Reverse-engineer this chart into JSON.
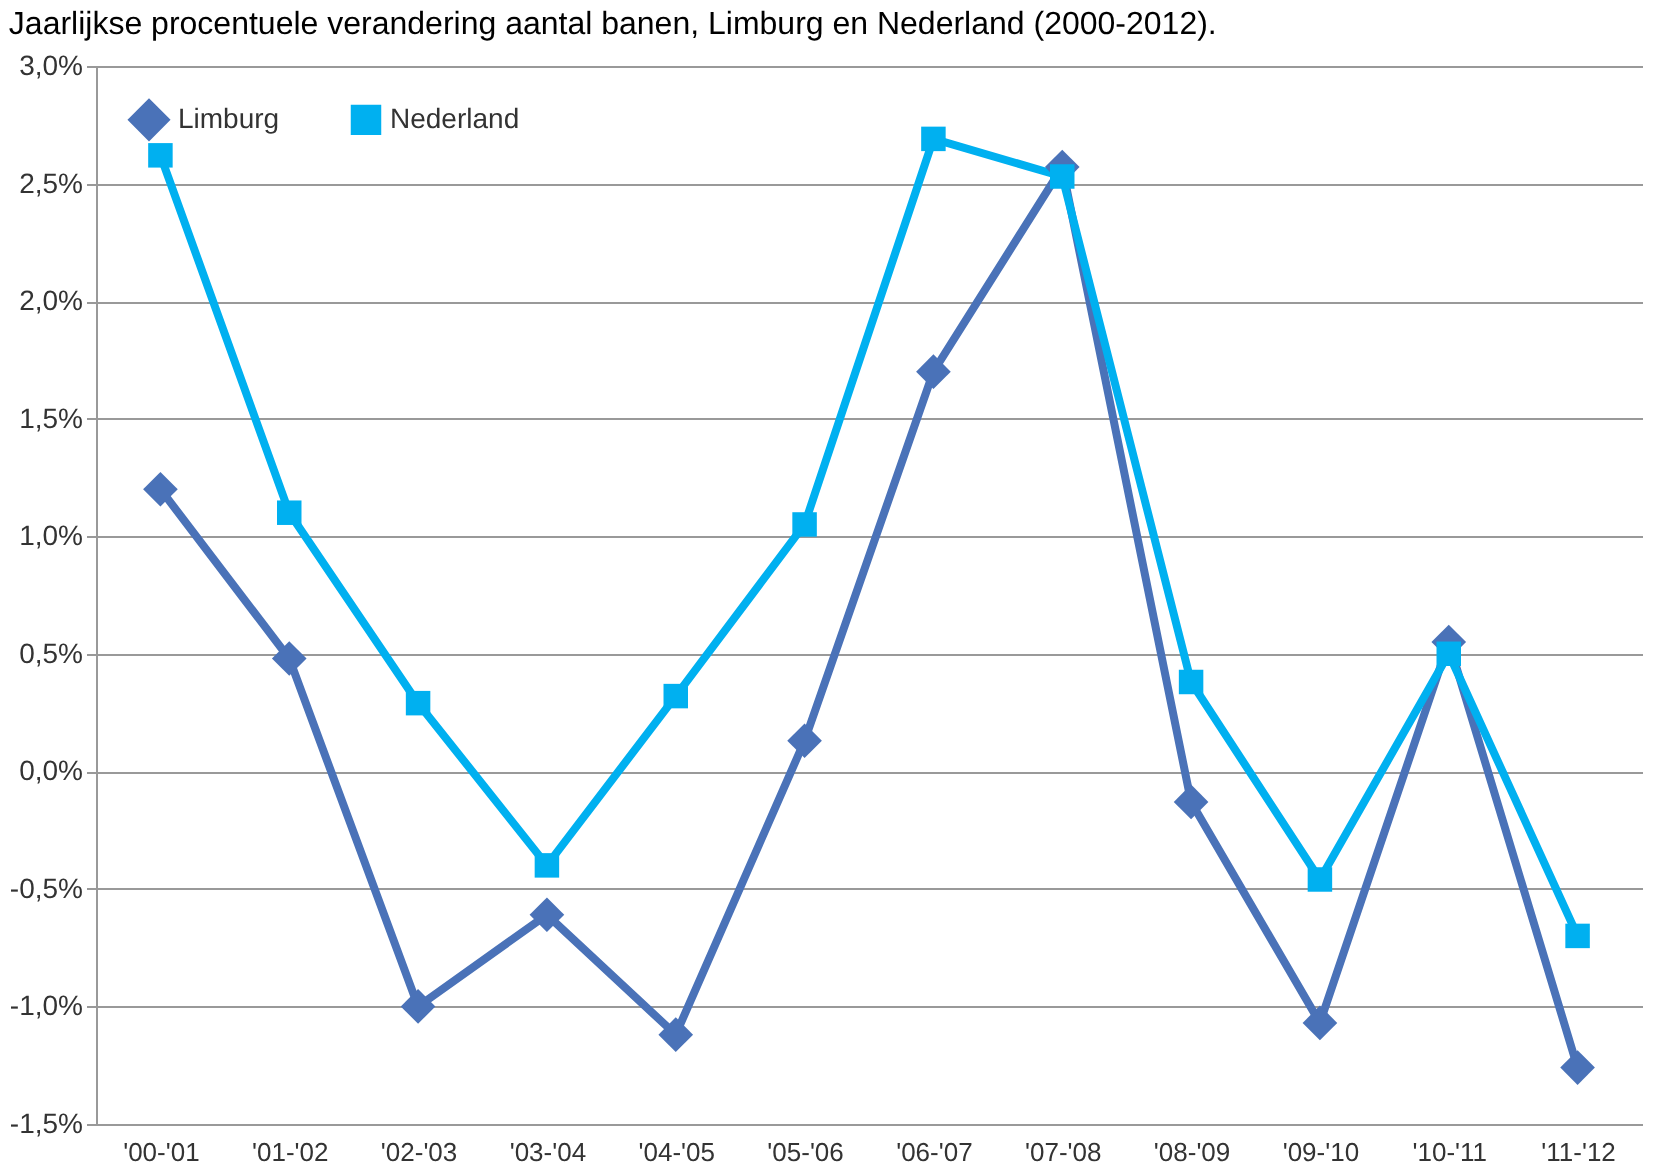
{
  "chart_data": {
    "type": "line",
    "title": "Jaarlijkse procentuele verandering aantal banen, Limburg en Nederland (2000-2012).",
    "categories": [
      "'00-'01",
      "'01-'02",
      "'02-'03",
      "'03-'04",
      "'04-'05",
      "'05-'06",
      "'06-'07",
      "'07-'08",
      "'08-'09",
      "'09-'10",
      "'10-'11",
      "'11-'12"
    ],
    "series": [
      {
        "name": "Limburg",
        "color": "#4a72b8",
        "marker": "diamond",
        "values": [
          1.2,
          0.48,
          -1.0,
          -0.61,
          -1.12,
          0.13,
          1.7,
          2.57,
          -0.13,
          -1.07,
          0.55,
          -1.26
        ]
      },
      {
        "name": "Nederland",
        "color": "#00b0f0",
        "marker": "square",
        "values": [
          2.62,
          1.1,
          0.29,
          -0.4,
          0.32,
          1.05,
          2.69,
          2.53,
          0.38,
          -0.46,
          0.5,
          -0.7
        ]
      }
    ],
    "ylim": [
      -1.5,
      3.0
    ],
    "yticks": [
      {
        "value": -1.5,
        "label": "-1,5%"
      },
      {
        "value": -1.0,
        "label": "-1,0%"
      },
      {
        "value": -0.5,
        "label": "-0,5%"
      },
      {
        "value": 0,
        "label": "0,0%"
      },
      {
        "value": 0.5,
        "label": "0,5%"
      },
      {
        "value": 1.0,
        "label": "1,0%"
      },
      {
        "value": 1.5,
        "label": "1,5%"
      },
      {
        "value": 2.0,
        "label": "2,0%"
      },
      {
        "value": 2.5,
        "label": "2,5%"
      },
      {
        "value": 3.0,
        "label": "3,0%"
      }
    ],
    "grid": "y",
    "legend": "top left",
    "line_style": "solid"
  }
}
